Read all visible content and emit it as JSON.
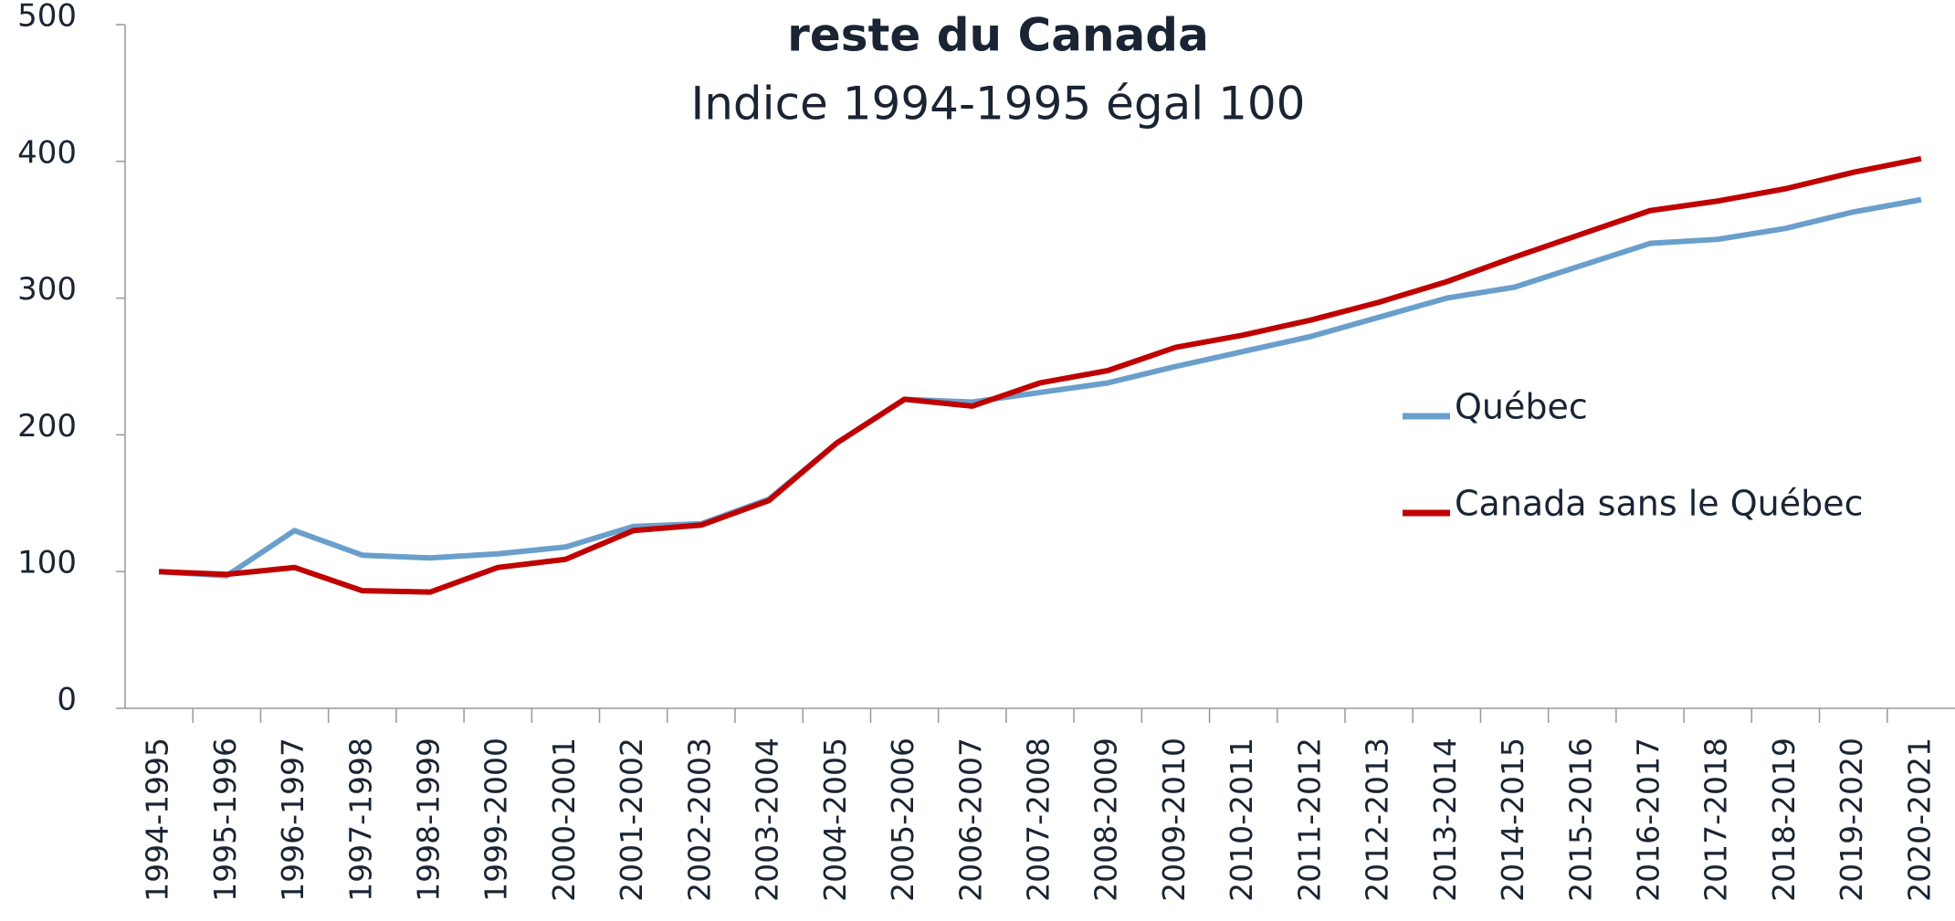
{
  "chart_data": {
    "type": "line",
    "title": "reste du Canada",
    "subtitle": "Indice 1994-1995 égal 100",
    "categories": [
      "1994-1995",
      "1995-1996",
      "1996-1997",
      "1997-1998",
      "1998-1999",
      "1999-2000",
      "2000-2001",
      "2001-2002",
      "2002-2003",
      "2003-2004",
      "2004-2005",
      "2005-2006",
      "2006-2007",
      "2007-2008",
      "2008-2009",
      "2009-2010",
      "2010-2011",
      "2011-2012",
      "2012-2013",
      "2013-2014",
      "2014-2015",
      "2015-2016",
      "2016-2017",
      "2017-2018",
      "2018-2019",
      "2019-2020",
      "2020-2021"
    ],
    "series": [
      {
        "name": "Québec",
        "color": "#6a9fcc",
        "values": [
          100,
          97,
          130,
          112,
          110,
          113,
          118,
          133,
          135,
          153,
          194,
          226,
          224,
          231,
          238,
          250,
          261,
          272,
          286,
          300,
          308,
          324,
          340,
          343,
          351,
          363,
          372
        ]
      },
      {
        "name": "Canada sans le Québec",
        "color": "#c00000",
        "values": [
          100,
          98,
          103,
          86,
          85,
          103,
          109,
          130,
          134,
          152,
          194,
          226,
          221,
          238,
          247,
          264,
          273,
          284,
          297,
          312,
          330,
          347,
          364,
          371,
          380,
          392,
          402
        ]
      }
    ],
    "ylim": [
      0,
      500
    ],
    "yticks": [
      0,
      100,
      200,
      300,
      400,
      500
    ],
    "legend": "right"
  }
}
